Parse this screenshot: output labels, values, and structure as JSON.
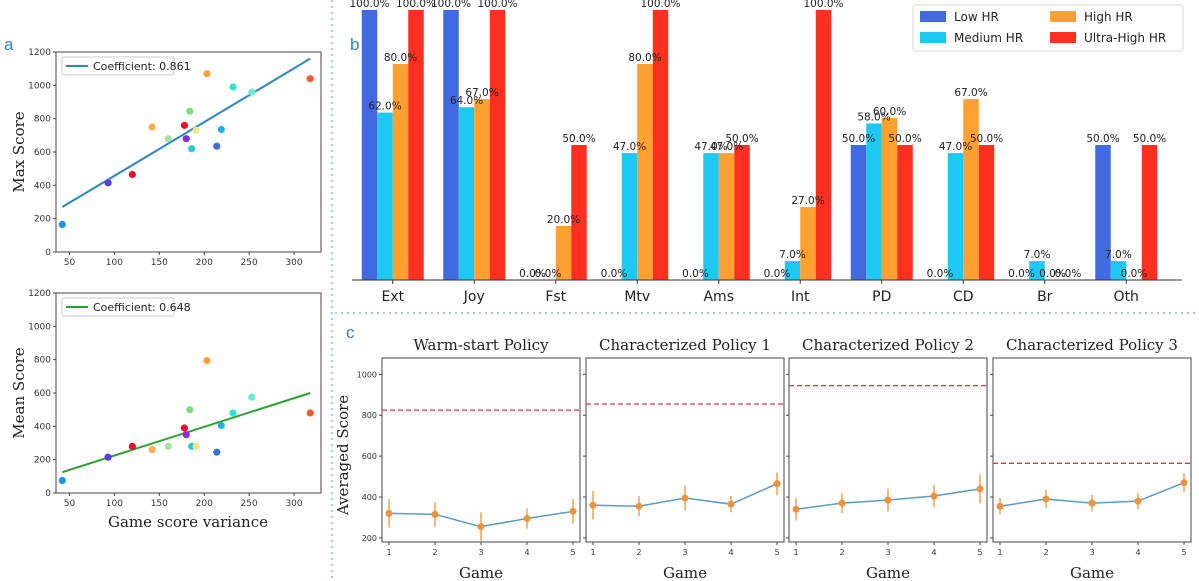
{
  "colors": {
    "panel_letter": "#2e86c1",
    "separator": "#5dade2",
    "scatter_line_a1": "#2e86c1",
    "scatter_line_a2": "#2ca02c",
    "low_hr": "#4169e1",
    "medium_hr": "#1ec8f0",
    "high_hr": "#ffa030",
    "ultra_hr": "#ff3020",
    "policy_line": "#5b9bc8",
    "policy_point": "#f0923a",
    "threshold": "#e03030"
  },
  "panel_labels": {
    "a": "a",
    "b": "b",
    "c": "c"
  },
  "chart_data": [
    {
      "id": "a1",
      "type": "scatter",
      "title": "",
      "xlabel": "",
      "ylabel": "Max Score",
      "xlim": [
        35,
        330
      ],
      "ylim": [
        0,
        1200
      ],
      "xticks": [
        50,
        100,
        150,
        200,
        250,
        300
      ],
      "yticks": [
        0,
        200,
        400,
        600,
        800,
        1000,
        1200
      ],
      "legend": "Coefficient: 0.861",
      "fit": {
        "x": [
          42,
          318
        ],
        "y": [
          270,
          1160
        ]
      },
      "points": [
        {
          "x": 42,
          "y": 165,
          "c": "#1e90ff"
        },
        {
          "x": 93,
          "y": 415,
          "c": "#5a3de6"
        },
        {
          "x": 120,
          "y": 465,
          "c": "#e8102a"
        },
        {
          "x": 142,
          "y": 750,
          "c": "#ffb050"
        },
        {
          "x": 160,
          "y": 680,
          "c": "#9ee39e"
        },
        {
          "x": 178,
          "y": 760,
          "c": "#e8102a"
        },
        {
          "x": 180,
          "y": 680,
          "c": "#8a2be2"
        },
        {
          "x": 184,
          "y": 845,
          "c": "#7ddc7d"
        },
        {
          "x": 186,
          "y": 620,
          "c": "#2ac9d9"
        },
        {
          "x": 191,
          "y": 730,
          "c": "#f0e68c"
        },
        {
          "x": 203,
          "y": 1070,
          "c": "#ffa040"
        },
        {
          "x": 214,
          "y": 635,
          "c": "#3a6fe0"
        },
        {
          "x": 219,
          "y": 735,
          "c": "#20b0f0"
        },
        {
          "x": 232,
          "y": 990,
          "c": "#2ee6c8"
        },
        {
          "x": 253,
          "y": 960,
          "c": "#6fe8d8"
        },
        {
          "x": 318,
          "y": 1040,
          "c": "#f05a30"
        }
      ]
    },
    {
      "id": "a2",
      "type": "scatter",
      "title": "",
      "xlabel": "Game score variance",
      "ylabel": "Mean Score",
      "xlim": [
        35,
        330
      ],
      "ylim": [
        0,
        1200
      ],
      "xticks": [
        50,
        100,
        150,
        200,
        250,
        300
      ],
      "yticks": [
        0,
        200,
        400,
        600,
        800,
        1000,
        1200
      ],
      "legend": "Coefficient: 0.648",
      "fit": {
        "x": [
          42,
          318
        ],
        "y": [
          125,
          600
        ]
      },
      "points": [
        {
          "x": 42,
          "y": 75,
          "c": "#1e90ff"
        },
        {
          "x": 93,
          "y": 215,
          "c": "#5a3de6"
        },
        {
          "x": 120,
          "y": 280,
          "c": "#e8102a"
        },
        {
          "x": 142,
          "y": 260,
          "c": "#ffb050"
        },
        {
          "x": 160,
          "y": 280,
          "c": "#9ee39e"
        },
        {
          "x": 178,
          "y": 390,
          "c": "#e8102a"
        },
        {
          "x": 180,
          "y": 350,
          "c": "#8a2be2"
        },
        {
          "x": 184,
          "y": 500,
          "c": "#7ddc7d"
        },
        {
          "x": 186,
          "y": 280,
          "c": "#2ac9d9"
        },
        {
          "x": 191,
          "y": 280,
          "c": "#f0e68c"
        },
        {
          "x": 203,
          "y": 795,
          "c": "#ffa040"
        },
        {
          "x": 214,
          "y": 245,
          "c": "#3a6fe0"
        },
        {
          "x": 219,
          "y": 405,
          "c": "#20b0f0"
        },
        {
          "x": 232,
          "y": 480,
          "c": "#2ee6c8"
        },
        {
          "x": 253,
          "y": 575,
          "c": "#6fe8d8"
        },
        {
          "x": 318,
          "y": 480,
          "c": "#f05a30"
        }
      ]
    },
    {
      "id": "b",
      "type": "bar",
      "title": "",
      "xlabel": "",
      "ylabel": "",
      "ylim": [
        0,
        100
      ],
      "legend_position": "top-right",
      "categories": [
        "Ext",
        "Joy",
        "Fst",
        "Mtv",
        "Ams",
        "Int",
        "PD",
        "CD",
        "Br",
        "Oth"
      ],
      "series": [
        {
          "name": "Low HR",
          "values": [
            100,
            100,
            0,
            0,
            0,
            0,
            50,
            0,
            0,
            50
          ],
          "labels": [
            "100.0%",
            "100.0%",
            "0.0%",
            "0.0%",
            "0.0%",
            "0.0%",
            "50.0%",
            "0.0%",
            "0.0%",
            "50.0%"
          ]
        },
        {
          "name": "Medium HR",
          "values": [
            62,
            64,
            0,
            47,
            47,
            7,
            58,
            47,
            7,
            7
          ],
          "labels": [
            "62.0%",
            "64.0%",
            "0.0%",
            "47.0%",
            "47.0%",
            "7.0%",
            "58.0%",
            "47.0%",
            "7.0%",
            "7.0%"
          ]
        },
        {
          "name": "High HR",
          "values": [
            80,
            67,
            20,
            80,
            47,
            27,
            60,
            67,
            0,
            0
          ],
          "labels": [
            "80.0%",
            "67.0%",
            "20.0%",
            "80.0%",
            "47.0%",
            "27.0%",
            "60.0%",
            "67.0%",
            "0.0%",
            "0.0%"
          ]
        },
        {
          "name": "Ultra-High HR",
          "values": [
            100,
            100,
            50,
            100,
            50,
            100,
            50,
            50,
            0,
            50
          ],
          "labels": [
            "100.0%",
            "100.0%",
            "50.0%",
            "100.0%",
            "50.0%",
            "100.0%",
            "50.0%",
            "50.0%",
            "0.0%",
            "50.0%"
          ]
        }
      ]
    },
    {
      "id": "c",
      "type": "line",
      "xlabel": "Game",
      "ylabel": "Averaged Score",
      "ylim": [
        180,
        1080
      ],
      "yticks": [
        200,
        400,
        600,
        800,
        1000
      ],
      "xticks": [
        1,
        2,
        3,
        4,
        5
      ],
      "panels": [
        {
          "title": "Warm-start Policy",
          "y": [
            320,
            315,
            255,
            295,
            330
          ],
          "err": [
            70,
            60,
            70,
            50,
            60
          ],
          "threshold": 825
        },
        {
          "title": "Characterized Policy 1",
          "y": [
            360,
            355,
            395,
            365,
            465
          ],
          "err": [
            70,
            50,
            60,
            40,
            55
          ],
          "threshold": 855
        },
        {
          "title": "Characterized Policy 2",
          "y": [
            340,
            370,
            385,
            405,
            440
          ],
          "err": [
            55,
            50,
            55,
            55,
            70
          ],
          "threshold": 945
        },
        {
          "title": "Characterized Policy 3",
          "y": [
            355,
            390,
            370,
            380,
            470
          ],
          "err": [
            40,
            45,
            40,
            40,
            45
          ],
          "threshold": 565
        }
      ]
    }
  ]
}
